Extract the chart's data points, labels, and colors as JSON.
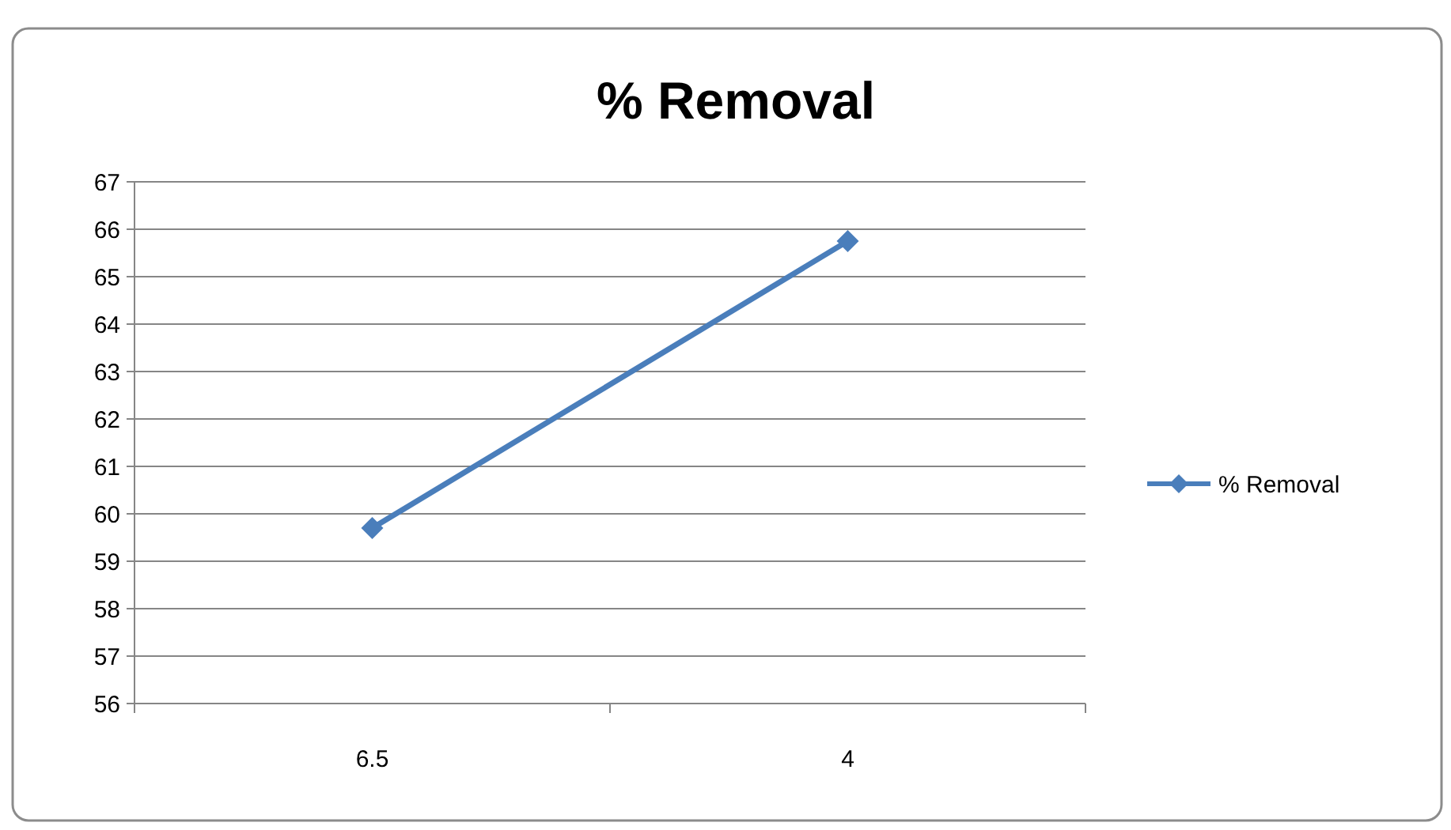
{
  "chart_data": {
    "type": "line",
    "title": "% Removal",
    "categories": [
      "6.5",
      "4"
    ],
    "series": [
      {
        "name": "% Removal",
        "color": "#4a7ebb",
        "values": [
          59.7,
          65.75
        ]
      }
    ],
    "ylim": [
      56,
      67
    ],
    "yticks": [
      56,
      57,
      58,
      59,
      60,
      61,
      62,
      63,
      64,
      65,
      66,
      67
    ],
    "grid": "y",
    "legend": "right",
    "marker": "diamond",
    "line_style": "solid"
  }
}
